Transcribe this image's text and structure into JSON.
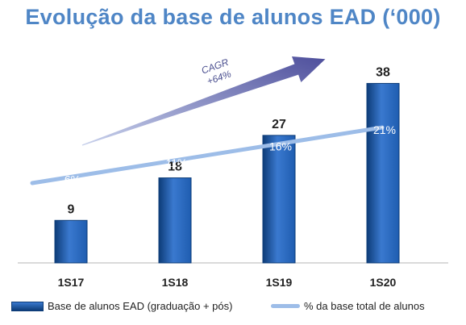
{
  "chart_data": {
    "type": "bar",
    "title": "Evolução da base de alunos EAD (‘000)",
    "categories": [
      "1S17",
      "1S18",
      "1S19",
      "1S20"
    ],
    "series": [
      {
        "name": "Base de alunos EAD (graduação + pós)",
        "type": "bar",
        "values": [
          9,
          18,
          27,
          38
        ],
        "labels": [
          "9",
          "18",
          "27",
          "38"
        ]
      },
      {
        "name": "% da base total de alunos",
        "type": "line",
        "values": [
          6,
          11,
          16,
          21
        ],
        "labels": [
          "6%",
          "11%",
          "16%",
          "21%"
        ]
      }
    ],
    "annotation": {
      "line1": "CAGR",
      "line2": "+64%"
    },
    "bar_ylim": [
      0,
      42
    ],
    "pct_ylim": [
      -20,
      40
    ],
    "grid": false,
    "legend_position": "bottom"
  },
  "colors": {
    "title": "#4f86c6",
    "bar_dark": "#0d3c78",
    "bar_mid": "#1f5db0",
    "bar_light": "#3a79cf",
    "line": "#9dbde8",
    "arrow_start": "#c9d2ec",
    "arrow_end": "#4e4f9c",
    "cagr_text": "#4a4f8f",
    "value_text": "#222222",
    "pct_text": "#ffffff",
    "axis": "#b5b5b5"
  }
}
